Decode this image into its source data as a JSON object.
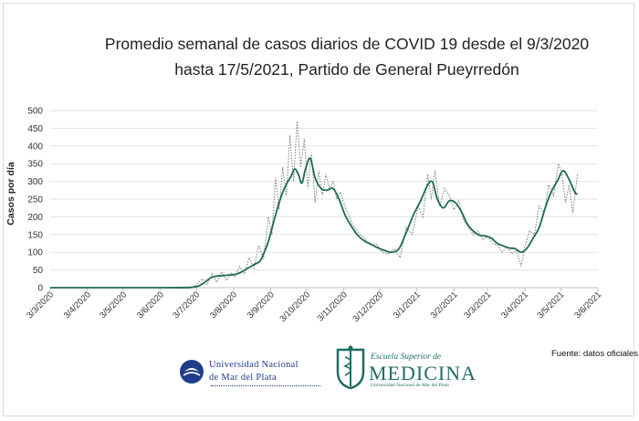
{
  "chart_data": {
    "type": "line",
    "title": "Promedio semanal de casos diarios de COVID 19 desde el 9/3/2020",
    "subtitle": "hasta 17/5/2021, Partido de General Pueyrredón",
    "xlabel": "",
    "ylabel": "Casos por día",
    "ylim": [
      0,
      500
    ],
    "yticks": [
      "0",
      "50",
      "100",
      "150",
      "200",
      "250",
      "300",
      "350",
      "400",
      "450",
      "500"
    ],
    "xticks": [
      "3/3/2020",
      "3/4/2020",
      "3/5/2020",
      "3/6/2020",
      "3/7/2020",
      "3/8/2020",
      "3/9/2020",
      "3/10/2020",
      "3/11/2020",
      "3/12/2020",
      "3/1/2021",
      "3/2/2021",
      "3/3/2021",
      "3/4/2021",
      "3/5/2021",
      "3/6/2021"
    ],
    "grid": true,
    "series": [
      {
        "style": "solid",
        "color": "#1e6b52",
        "x": [
          "3/3/2020",
          "9/3/2020",
          "1/4/2020",
          "1/5/2020",
          "1/6/2020",
          "25/6/2020",
          "1/7/2020",
          "5/7/2020",
          "10/7/2020",
          "15/7/2020",
          "20/7/2020",
          "25/7/2020",
          "31/7/2020",
          "5/8/2020",
          "10/8/2020",
          "15/8/2020",
          "20/8/2020",
          "25/8/2020",
          "28/8/2020",
          "1/9/2020",
          "5/9/2020",
          "10/9/2020",
          "15/9/2020",
          "20/9/2020",
          "23/9/2020",
          "26/9/2020",
          "29/9/2020",
          "2/10/2020",
          "6/10/2020",
          "10/10/2020",
          "15/10/2020",
          "20/10/2020",
          "25/10/2020",
          "30/10/2020",
          "4/11/2020",
          "9/11/2020",
          "14/11/2020",
          "20/11/2020",
          "26/11/2020",
          "1/12/2020",
          "7/12/2020",
          "13/12/2020",
          "19/12/2020",
          "25/12/2020",
          "31/12/2020",
          "6/1/2021",
          "12/1/2021",
          "16/1/2021",
          "20/1/2021",
          "25/1/2021",
          "30/1/2021",
          "4/2/2021",
          "9/2/2021",
          "14/2/2021",
          "19/2/2021",
          "24/2/2021",
          "1/3/2021",
          "6/3/2021",
          "11/3/2021",
          "16/3/2021",
          "21/3/2021",
          "26/3/2021",
          "31/3/2021",
          "5/4/2021",
          "10/4/2021",
          "15/4/2021",
          "20/4/2021",
          "25/4/2021",
          "30/4/2021",
          "5/5/2021",
          "10/5/2021",
          "15/5/2021",
          "17/5/2021"
        ],
        "values": [
          0,
          0,
          0,
          0,
          0,
          0,
          2,
          5,
          15,
          28,
          33,
          34,
          36,
          38,
          45,
          55,
          65,
          75,
          95,
          130,
          180,
          240,
          285,
          315,
          335,
          320,
          295,
          335,
          365,
          310,
          280,
          275,
          280,
          250,
          205,
          175,
          150,
          132,
          122,
          113,
          105,
          100,
          110,
          155,
          205,
          245,
          290,
          298,
          250,
          225,
          245,
          240,
          215,
          180,
          160,
          148,
          146,
          140,
          125,
          118,
          112,
          110,
          100,
          112,
          140,
          170,
          225,
          270,
          300,
          330,
          305,
          268,
          265
        ]
      },
      {
        "style": "dotted",
        "color": "#7a7a7a",
        "x": [
          "3/3/2020",
          "1/6/2020",
          "1/7/2020",
          "8/7/2020",
          "12/7/2020",
          "16/7/2020",
          "20/7/2020",
          "24/7/2020",
          "28/7/2020",
          "1/8/2020",
          "4/8/2020",
          "8/8/2020",
          "12/8/2020",
          "16/8/2020",
          "20/8/2020",
          "24/8/2020",
          "28/8/2020",
          "1/9/2020",
          "4/9/2020",
          "7/9/2020",
          "10/9/2020",
          "13/9/2020",
          "16/9/2020",
          "19/9/2020",
          "22/9/2020",
          "25/9/2020",
          "28/9/2020",
          "1/10/2020",
          "4/10/2020",
          "7/10/2020",
          "10/10/2020",
          "13/10/2020",
          "16/10/2020",
          "19/10/2020",
          "22/10/2020",
          "25/10/2020",
          "28/10/2020",
          "31/10/2020",
          "5/11/2020",
          "10/11/2020",
          "15/11/2020",
          "20/11/2020",
          "25/11/2020",
          "30/11/2020",
          "5/12/2020",
          "10/12/2020",
          "15/12/2020",
          "20/12/2020",
          "25/12/2020",
          "30/12/2020",
          "4/1/2021",
          "8/1/2021",
          "12/1/2021",
          "15/1/2021",
          "18/1/2021",
          "22/1/2021",
          "26/1/2021",
          "30/1/2021",
          "3/2/2021",
          "7/2/2021",
          "11/2/2021",
          "15/2/2021",
          "19/2/2021",
          "23/2/2021",
          "27/2/2021",
          "3/3/2021",
          "7/3/2021",
          "11/3/2021",
          "15/3/2021",
          "19/3/2021",
          "23/3/2021",
          "27/3/2021",
          "31/3/2021",
          "3/4/2021",
          "7/4/2021",
          "11/4/2021",
          "15/4/2021",
          "19/4/2021",
          "23/4/2021",
          "27/4/2021",
          "1/5/2021",
          "4/5/2021",
          "7/5/2021",
          "10/5/2021",
          "13/5/2021",
          "17/5/2021"
        ],
        "values": [
          0,
          0,
          3,
          25,
          8,
          40,
          15,
          45,
          20,
          42,
          30,
          60,
          38,
          85,
          55,
          120,
          80,
          200,
          150,
          310,
          220,
          340,
          260,
          430,
          300,
          470,
          340,
          420,
          280,
          380,
          240,
          330,
          260,
          320,
          280,
          300,
          250,
          270,
          220,
          180,
          155,
          140,
          120,
          125,
          100,
          95,
          110,
          85,
          170,
          150,
          230,
          200,
          320,
          250,
          330,
          230,
          280,
          260,
          220,
          245,
          190,
          170,
          150,
          160,
          135,
          145,
          125,
          120,
          100,
          115,
          95,
          105,
          60,
          115,
          160,
          150,
          230,
          210,
          290,
          260,
          350,
          320,
          240,
          290,
          210,
          320
        ]
      }
    ]
  },
  "source_label": "Fuente: datos oficiales",
  "logos": {
    "unmdp": {
      "line1": "Universidad Nacional",
      "line2": "de Mar del Plata",
      "color": "#1f3d8a"
    },
    "medicina": {
      "line1": "Escuela Superior de",
      "line2": "MEDICINA",
      "line3": "Universidad Nacional de Mar del Plata",
      "color": "#1f6e64"
    }
  }
}
